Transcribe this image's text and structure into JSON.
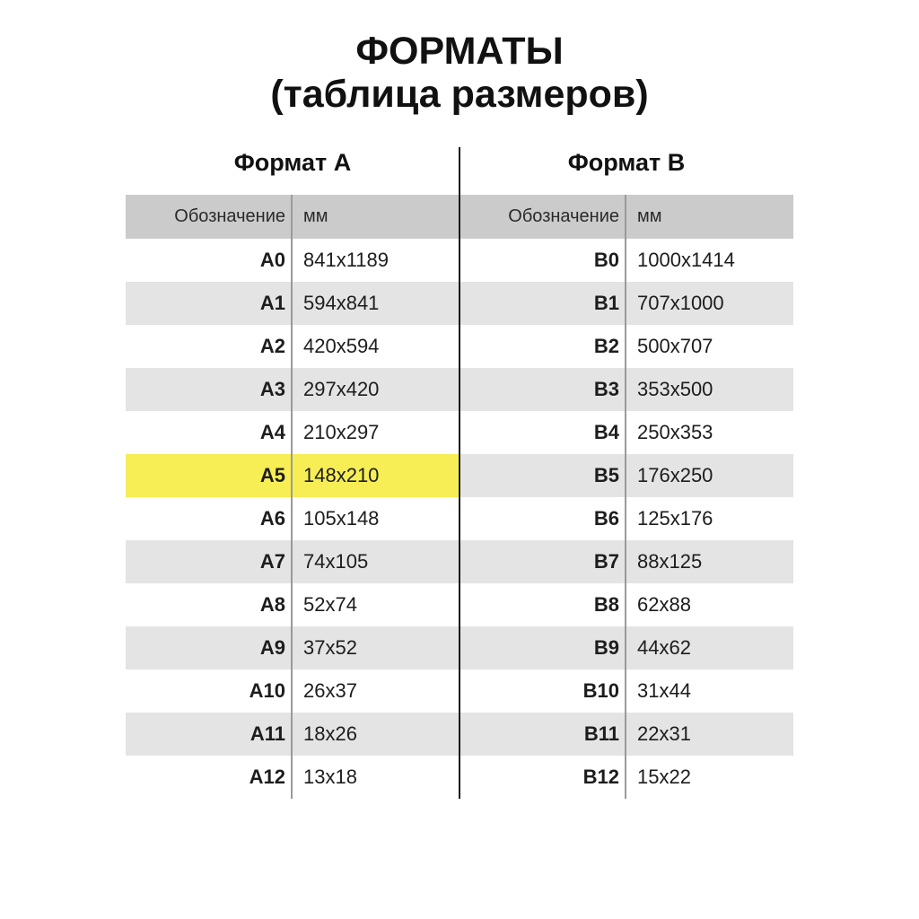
{
  "title": {
    "line1": "ФОРМАТЫ",
    "line2": "(таблица размеров)"
  },
  "sections": {
    "a_title": "Формат A",
    "b_title": "Формат B"
  },
  "headers": {
    "designation": "Обозначение",
    "mm": "мм"
  },
  "highlight": {
    "row": "A5",
    "side": "a"
  },
  "colors": {
    "header_bg": "#cbcbcb",
    "alt_row_bg": "#e4e4e4",
    "highlight_bg": "#f7ee56",
    "divider_gray": "#9a9a9a",
    "divider_black": "#1b1b1b",
    "text": "#1d1d1d"
  },
  "rows": [
    {
      "a": "A0",
      "a_mm": "841x1189",
      "b": "B0",
      "b_mm": "1000x1414",
      "highlight": null
    },
    {
      "a": "A1",
      "a_mm": "594x841",
      "b": "B1",
      "b_mm": "707x1000",
      "highlight": null
    },
    {
      "a": "A2",
      "a_mm": "420x594",
      "b": "B2",
      "b_mm": "500x707",
      "highlight": null
    },
    {
      "a": "A3",
      "a_mm": "297x420",
      "b": "B3",
      "b_mm": "353x500",
      "highlight": null
    },
    {
      "a": "A4",
      "a_mm": "210x297",
      "b": "B4",
      "b_mm": "250x353",
      "highlight": null
    },
    {
      "a": "A5",
      "a_mm": "148x210",
      "b": "B5",
      "b_mm": "176x250",
      "highlight": "a"
    },
    {
      "a": "A6",
      "a_mm": "105x148",
      "b": "B6",
      "b_mm": "125x176",
      "highlight": null
    },
    {
      "a": "A7",
      "a_mm": "74x105",
      "b": "B7",
      "b_mm": "88x125",
      "highlight": null
    },
    {
      "a": "A8",
      "a_mm": "52x74",
      "b": "B8",
      "b_mm": "62x88",
      "highlight": null
    },
    {
      "a": "A9",
      "a_mm": "37x52",
      "b": "B9",
      "b_mm": "44x62",
      "highlight": null
    },
    {
      "a": "A10",
      "a_mm": "26x37",
      "b": "B10",
      "b_mm": "31x44",
      "highlight": null
    },
    {
      "a": "A11",
      "a_mm": "18x26",
      "b": "B11",
      "b_mm": "22x31",
      "highlight": null
    },
    {
      "a": "A12",
      "a_mm": "13x18",
      "b": "B12",
      "b_mm": "15x22",
      "highlight": null
    }
  ],
  "chart_data": {
    "type": "table",
    "title": "ФОРМАТЫ (таблица размеров)",
    "sections": [
      {
        "name": "Формат A",
        "columns": [
          "Обозначение",
          "мм"
        ],
        "rows": [
          [
            "A0",
            "841x1189"
          ],
          [
            "A1",
            "594x841"
          ],
          [
            "A2",
            "420x594"
          ],
          [
            "A3",
            "297x420"
          ],
          [
            "A4",
            "210x297"
          ],
          [
            "A5",
            "148x210"
          ],
          [
            "A6",
            "105x148"
          ],
          [
            "A7",
            "74x105"
          ],
          [
            "A8",
            "52x74"
          ],
          [
            "A9",
            "37x52"
          ],
          [
            "A10",
            "26x37"
          ],
          [
            "A11",
            "18x26"
          ],
          [
            "A12",
            "13x18"
          ]
        ]
      },
      {
        "name": "Формат B",
        "columns": [
          "Обозначение",
          "мм"
        ],
        "rows": [
          [
            "B0",
            "1000x1414"
          ],
          [
            "B1",
            "707x1000"
          ],
          [
            "B2",
            "500x707"
          ],
          [
            "B3",
            "353x500"
          ],
          [
            "B4",
            "250x353"
          ],
          [
            "B5",
            "176x250"
          ],
          [
            "B6",
            "125x176"
          ],
          [
            "B7",
            "88x125"
          ],
          [
            "B8",
            "62x88"
          ],
          [
            "B9",
            "44x62"
          ],
          [
            "B10",
            "31x44"
          ],
          [
            "B11",
            "22x31"
          ],
          [
            "B12",
            "15x22"
          ]
        ]
      }
    ],
    "highlighted_cell": "A5 148x210",
    "layout": "two side-by-side tables separated by vertical black line; alternating white/gray rows; A5 row highlighted yellow"
  }
}
